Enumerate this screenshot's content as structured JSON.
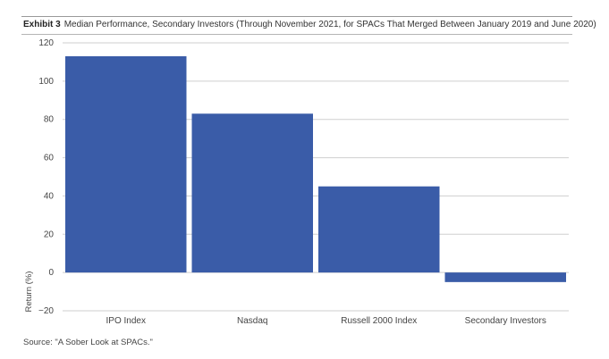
{
  "header": {
    "exhibit": "Exhibit 3",
    "title": "Median Performance, Secondary Investors (Through November 2021, for SPACs That Merged Between January 2019 and June 2020)"
  },
  "footer": {
    "source": "Source: \"A Sober Look at SPACs.\""
  },
  "chart_data": {
    "type": "bar",
    "title": "Median Performance, Secondary Investors (Through November 2021, for SPACs That Merged Between January 2019 and June 2020)",
    "xlabel": "",
    "ylabel": "Return (%)",
    "categories": [
      "IPO Index",
      "Nasdaq",
      "Russell 2000 Index",
      "Secondary Investors"
    ],
    "values": [
      113,
      83,
      45,
      -5
    ],
    "ylim": [
      -20,
      120
    ],
    "yticks": [
      -20,
      0,
      20,
      40,
      60,
      80,
      100,
      120
    ],
    "ytick_labels": [
      "−20",
      "0",
      "20",
      "40",
      "60",
      "80",
      "100",
      "120"
    ],
    "grid": true,
    "legend": "none",
    "colors": {
      "bar": "#3a5ca8",
      "grid": "#cfcfcf",
      "axis_text": "#444444"
    }
  }
}
